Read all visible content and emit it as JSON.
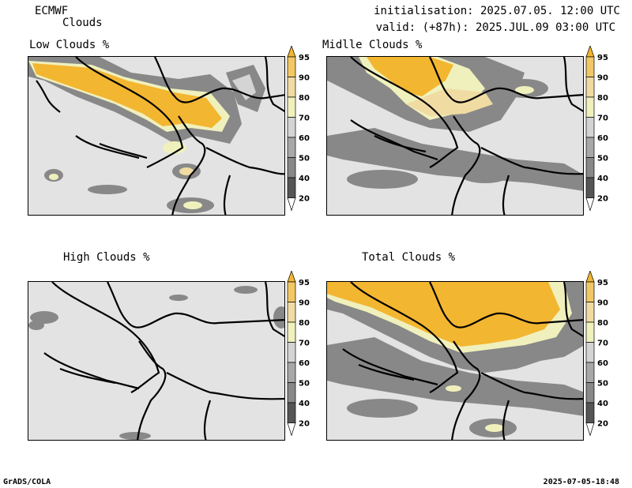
{
  "header": {
    "model": "ECMWF",
    "product": "Clouds",
    "init": "initialisation: 2025.07.05. 12:00 UTC",
    "valid": "valid: (+87h): 2025.JUL.09 03:00 UTC"
  },
  "panels": [
    {
      "title": "Low Clouds %"
    },
    {
      "title": "Midlle Clouds %"
    },
    {
      "title": "High Clouds %"
    },
    {
      "title": "Total Clouds %"
    }
  ],
  "colorbar": {
    "levels": [
      "95",
      "90",
      "80",
      "70",
      "60",
      "50",
      "40",
      "20"
    ],
    "colors": [
      "#f3b630",
      "#f1c865",
      "#f0dba2",
      "#f0f0bd",
      "#d4d4d4",
      "#a8a8a8",
      "#888888",
      "#555555",
      "#ffffff"
    ]
  },
  "footer": {
    "left": "GrADS/COLA",
    "right": "2025-07-05-18:48"
  }
}
